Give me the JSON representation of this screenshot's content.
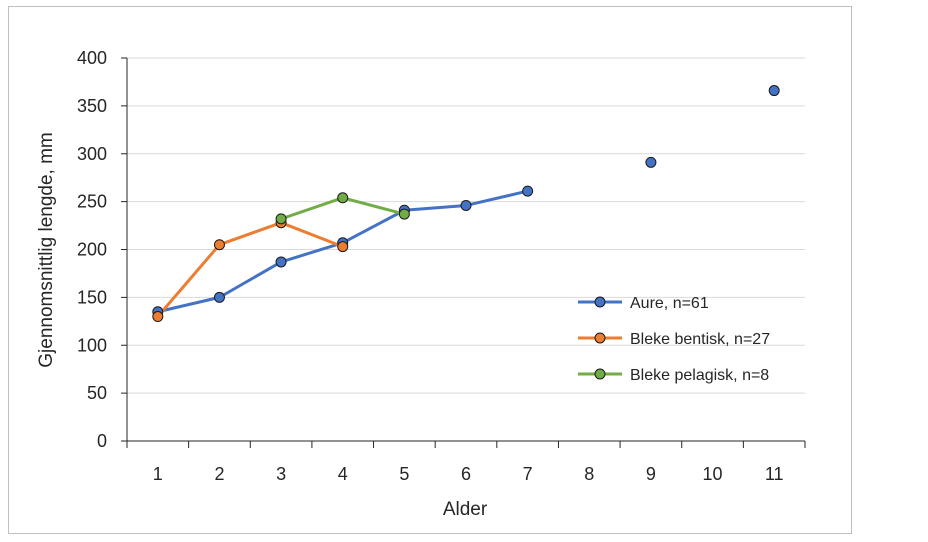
{
  "chart_data": {
    "type": "line",
    "title": "",
    "xlabel": "Alder",
    "ylabel": "Gjennomsnittlig lengde, mm",
    "categories": [
      "1",
      "2",
      "3",
      "4",
      "5",
      "6",
      "7",
      "8",
      "9",
      "10",
      "11"
    ],
    "ylim": [
      0,
      400
    ],
    "yticks": [
      0,
      50,
      100,
      150,
      200,
      250,
      300,
      350,
      400
    ],
    "grid": "horizontal",
    "legend_position": "right",
    "series": [
      {
        "name": "Aure, n=61",
        "color": "#4472c4",
        "marker_fill": "#4472c4",
        "values": [
          135,
          150,
          187,
          207,
          241,
          246,
          261,
          null,
          291,
          null,
          366
        ]
      },
      {
        "name": "Bleke bentisk, n=27",
        "color": "#ed7d31",
        "marker_fill": "#ed7d31",
        "values": [
          130,
          205,
          228,
          203,
          null,
          null,
          null,
          null,
          null,
          null,
          null
        ]
      },
      {
        "name": "Bleke pelagisk, n=8",
        "color": "#70ad47",
        "marker_fill": "#70ad47",
        "values": [
          null,
          null,
          232,
          254,
          237,
          null,
          null,
          null,
          null,
          null,
          null
        ]
      }
    ]
  }
}
